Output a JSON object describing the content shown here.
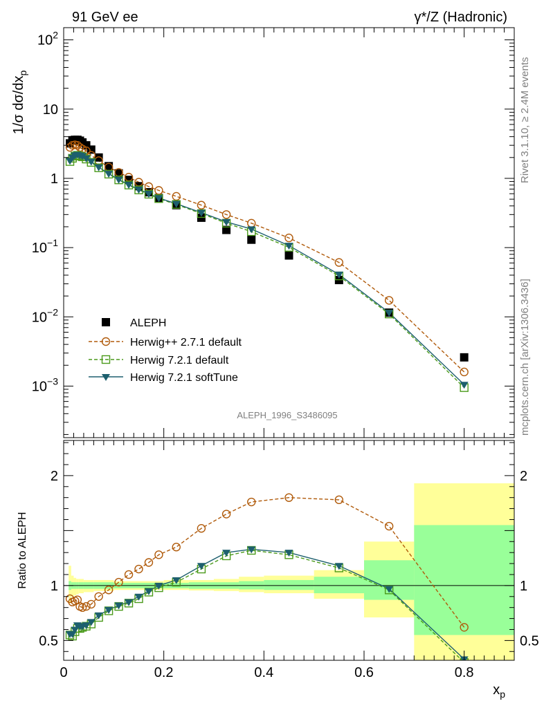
{
  "header": {
    "left": "91 GeV ee",
    "right": "γ*/Z (Hadronic)"
  },
  "side_labels": {
    "rivet": "Rivet 3.1.10, ≥ 2.4M events",
    "mcplots": "mcplots.cern.ch [arXiv:1306.3436]"
  },
  "analysis_id": "ALEPH_1996_S3486095",
  "colors": {
    "data": "#000000",
    "herwigpp": "#b05a0a",
    "herwig_default": "#4a9a1a",
    "herwig_soft": "#1d5f6e",
    "band_outer": "#ffff99",
    "band_inner": "#99ff99"
  },
  "chart_data": [
    {
      "type": "line",
      "panel": "main",
      "ylabel": "1/σ dσ/dx_p",
      "yscale": "log",
      "xlim": [
        0,
        0.9
      ],
      "ylim": [
        0.00018,
        150
      ],
      "x_ticks": [
        0,
        0.2,
        0.4,
        0.6,
        0.8
      ],
      "y_ticks": [
        {
          "value": 0.001,
          "base": "10",
          "exp": "−3"
        },
        {
          "value": 0.01,
          "base": "10",
          "exp": "−2"
        },
        {
          "value": 0.1,
          "base": "10",
          "exp": "−1"
        },
        {
          "value": 1,
          "base": "1",
          "exp": ""
        },
        {
          "value": 10,
          "base": "10",
          "exp": ""
        },
        {
          "value": 100,
          "base": "10",
          "exp": "2"
        }
      ],
      "x": [
        0.0125,
        0.0175,
        0.0225,
        0.0275,
        0.0325,
        0.0375,
        0.045,
        0.055,
        0.07,
        0.09,
        0.11,
        0.13,
        0.15,
        0.17,
        0.19,
        0.225,
        0.275,
        0.325,
        0.375,
        0.45,
        0.55,
        0.65,
        0.8
      ],
      "series": [
        {
          "name": "ALEPH",
          "marker": "square-filled",
          "color": "#000000",
          "values": [
            3.2,
            3.55,
            3.6,
            3.6,
            3.5,
            3.3,
            3.0,
            2.6,
            2.0,
            1.5,
            1.18,
            0.95,
            0.77,
            0.63,
            0.52,
            0.41,
            0.27,
            0.18,
            0.13,
            0.077,
            0.034,
            0.0115,
            0.0026
          ]
        },
        {
          "name": "Herwig++ 2.7.1 default",
          "marker": "circle-open",
          "dash": "5,3",
          "color": "#b05a0a",
          "values": [
            2.8,
            3.0,
            3.05,
            3.0,
            2.8,
            2.65,
            2.5,
            2.15,
            1.8,
            1.45,
            1.22,
            1.04,
            0.88,
            0.76,
            0.67,
            0.55,
            0.41,
            0.3,
            0.225,
            0.138,
            0.061,
            0.0173,
            0.0016
          ]
        },
        {
          "name": "Herwig 7.2.1 default",
          "marker": "square-open",
          "dash": "5,3",
          "color": "#4a9a1a",
          "values": [
            1.75,
            1.95,
            2.1,
            2.15,
            2.1,
            2.05,
            1.9,
            1.7,
            1.42,
            1.15,
            0.95,
            0.8,
            0.68,
            0.59,
            0.51,
            0.42,
            0.31,
            0.225,
            0.17,
            0.101,
            0.039,
            0.011,
            0.00095
          ]
        },
        {
          "name": "Herwig 7.2.1 softTune",
          "marker": "triangle-down-filled",
          "color": "#1d5f6e",
          "values": [
            1.8,
            2.0,
            2.15,
            2.2,
            2.15,
            2.1,
            1.95,
            1.75,
            1.45,
            1.17,
            0.96,
            0.81,
            0.69,
            0.6,
            0.52,
            0.43,
            0.32,
            0.235,
            0.185,
            0.107,
            0.041,
            0.0115,
            0.00105
          ]
        }
      ]
    },
    {
      "type": "line",
      "panel": "ratio",
      "xlabel": "x_p",
      "ylabel": "Ratio to ALEPH",
      "xlim": [
        0,
        0.9
      ],
      "ylim": [
        0.32,
        2.32
      ],
      "x_ticks": [
        0,
        0.2,
        0.4,
        0.6,
        0.8
      ],
      "y_ticks": [
        0.5,
        1,
        2
      ],
      "x": [
        0.0125,
        0.0175,
        0.0225,
        0.0275,
        0.0325,
        0.0375,
        0.045,
        0.055,
        0.07,
        0.09,
        0.11,
        0.13,
        0.15,
        0.17,
        0.19,
        0.225,
        0.275,
        0.325,
        0.375,
        0.45,
        0.55,
        0.65,
        0.8
      ],
      "bins": [
        {
          "lo": 0.01,
          "hi": 0.015,
          "outer": [
            0.84,
            1.18
          ],
          "inner": [
            0.96,
            1.04
          ]
        },
        {
          "lo": 0.015,
          "hi": 0.02,
          "outer": [
            0.9,
            1.09
          ],
          "inner": [
            0.97,
            1.03
          ]
        },
        {
          "lo": 0.02,
          "hi": 0.025,
          "outer": [
            0.91,
            1.07
          ],
          "inner": [
            0.97,
            1.03
          ]
        },
        {
          "lo": 0.025,
          "hi": 0.03,
          "outer": [
            0.92,
            1.06
          ],
          "inner": [
            0.97,
            1.03
          ]
        },
        {
          "lo": 0.03,
          "hi": 0.04,
          "outer": [
            0.93,
            1.06
          ],
          "inner": [
            0.97,
            1.03
          ]
        },
        {
          "lo": 0.04,
          "hi": 0.06,
          "outer": [
            0.94,
            1.05
          ],
          "inner": [
            0.97,
            1.03
          ]
        },
        {
          "lo": 0.06,
          "hi": 0.1,
          "outer": [
            0.95,
            1.05
          ],
          "inner": [
            0.97,
            1.03
          ]
        },
        {
          "lo": 0.1,
          "hi": 0.2,
          "outer": [
            0.96,
            1.04
          ],
          "inner": [
            0.975,
            1.025
          ]
        },
        {
          "lo": 0.2,
          "hi": 0.25,
          "outer": [
            0.96,
            1.05
          ],
          "inner": [
            0.975,
            1.025
          ]
        },
        {
          "lo": 0.25,
          "hi": 0.3,
          "outer": [
            0.955,
            1.05
          ],
          "inner": [
            0.97,
            1.03
          ]
        },
        {
          "lo": 0.3,
          "hi": 0.35,
          "outer": [
            0.95,
            1.06
          ],
          "inner": [
            0.97,
            1.03
          ]
        },
        {
          "lo": 0.35,
          "hi": 0.4,
          "outer": [
            0.94,
            1.08
          ],
          "inner": [
            0.965,
            1.04
          ]
        },
        {
          "lo": 0.4,
          "hi": 0.5,
          "outer": [
            0.93,
            1.09
          ],
          "inner": [
            0.96,
            1.05
          ]
        },
        {
          "lo": 0.5,
          "hi": 0.6,
          "outer": [
            0.88,
            1.14
          ],
          "inner": [
            0.93,
            1.08
          ]
        },
        {
          "lo": 0.6,
          "hi": 0.7,
          "outer": [
            0.71,
            1.4
          ],
          "inner": [
            0.87,
            1.23
          ]
        },
        {
          "lo": 0.7,
          "hi": 0.9,
          "outer": [
            0.3,
            1.93
          ],
          "inner": [
            0.55,
            1.55
          ]
        }
      ],
      "series": [
        {
          "name": "Herwig++ 2.7.1 default",
          "marker": "circle-open",
          "dash": "5,3",
          "color": "#b05a0a",
          "values": [
            0.88,
            0.85,
            0.86,
            0.87,
            0.81,
            0.8,
            0.81,
            0.83,
            0.9,
            0.96,
            1.03,
            1.1,
            1.15,
            1.21,
            1.28,
            1.35,
            1.52,
            1.65,
            1.76,
            1.8,
            1.78,
            1.54,
            0.62
          ]
        },
        {
          "name": "Herwig 7.2.1 default",
          "marker": "square-open",
          "dash": "5,3",
          "color": "#4a9a1a",
          "values": [
            0.55,
            0.54,
            0.58,
            0.61,
            0.61,
            0.62,
            0.63,
            0.65,
            0.71,
            0.77,
            0.81,
            0.84,
            0.88,
            0.94,
            0.98,
            1.03,
            1.15,
            1.27,
            1.32,
            1.28,
            1.16,
            0.96,
            0.3
          ]
        },
        {
          "name": "Herwig 7.2.1 softTune",
          "marker": "triangle-down-filled",
          "color": "#1d5f6e",
          "values": [
            0.56,
            0.56,
            0.6,
            0.64,
            0.63,
            0.63,
            0.64,
            0.67,
            0.73,
            0.78,
            0.82,
            0.85,
            0.9,
            0.95,
            1.0,
            1.05,
            1.18,
            1.3,
            1.33,
            1.3,
            1.18,
            0.97,
            0.33
          ]
        }
      ]
    }
  ]
}
